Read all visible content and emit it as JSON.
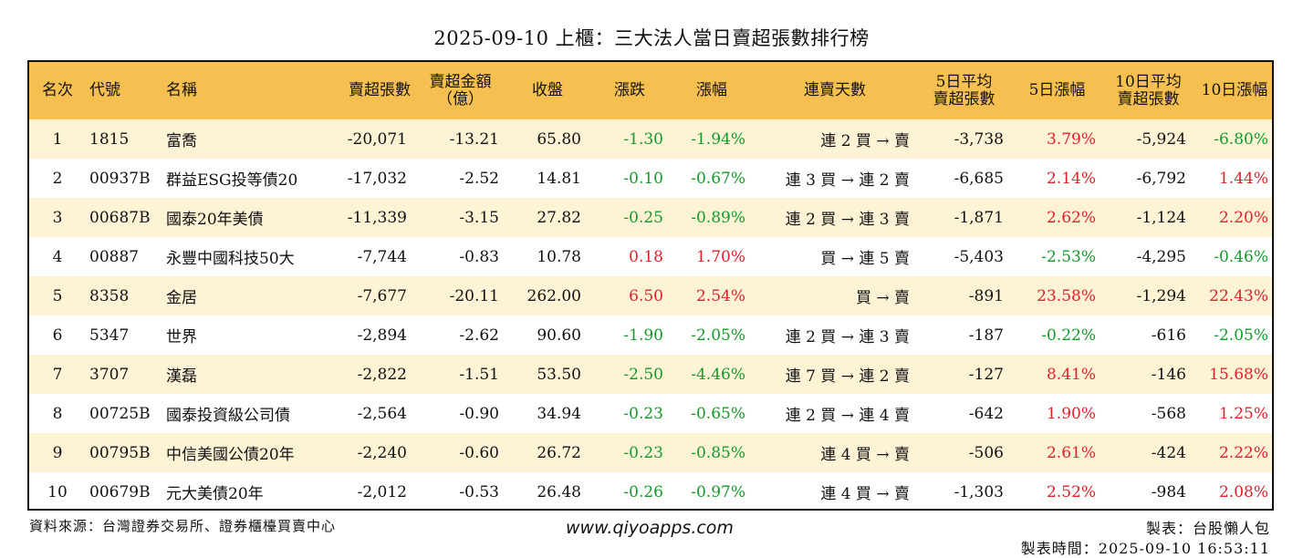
{
  "title": "2025-09-10 上櫃：三大法人當日賣超張數排行榜",
  "headers": {
    "rank": "名次",
    "code": "代號",
    "name": "名稱",
    "shares": "賣超張數",
    "amount_l1": "賣超金額",
    "amount_l2": "（億）",
    "close": "收盤",
    "change": "漲跌",
    "pct": "漲幅",
    "streak": "連賣天數",
    "avg5_l1": "5日平均",
    "avg5_l2": "賣超張數",
    "pct5": "5日漲幅",
    "avg10_l1": "10日平均",
    "avg10_l2": "賣超張數",
    "pct10": "10日漲幅"
  },
  "colors": {
    "header_bg": "#f6c050",
    "row_alt_bg": "#fff3d6",
    "up": "#e0202a",
    "down": "#139a2a"
  },
  "rows": [
    {
      "rank": "1",
      "code": "1815",
      "name": "富喬",
      "shares": "-20,071",
      "amount": "-13.21",
      "close": "65.80",
      "change": "-1.30",
      "pct": "-1.94%",
      "streak": "連 2 買 → 賣",
      "avg5": "-3,738",
      "pct5": "3.79%",
      "avg10": "-5,924",
      "pct10": "-6.80%"
    },
    {
      "rank": "2",
      "code": "00937B",
      "name": "群益ESG投等債20",
      "shares": "-17,032",
      "amount": "-2.52",
      "close": "14.81",
      "change": "-0.10",
      "pct": "-0.67%",
      "streak": "連 3 買 → 連 2 賣",
      "avg5": "-6,685",
      "pct5": "2.14%",
      "avg10": "-6,792",
      "pct10": "1.44%"
    },
    {
      "rank": "3",
      "code": "00687B",
      "name": "國泰20年美債",
      "shares": "-11,339",
      "amount": "-3.15",
      "close": "27.82",
      "change": "-0.25",
      "pct": "-0.89%",
      "streak": "連 2 買 → 連 3 賣",
      "avg5": "-1,871",
      "pct5": "2.62%",
      "avg10": "-1,124",
      "pct10": "2.20%"
    },
    {
      "rank": "4",
      "code": "00887",
      "name": "永豐中國科技50大",
      "shares": "-7,744",
      "amount": "-0.83",
      "close": "10.78",
      "change": "0.18",
      "pct": "1.70%",
      "streak": "買 → 連 5 賣",
      "avg5": "-5,403",
      "pct5": "-2.53%",
      "avg10": "-4,295",
      "pct10": "-0.46%"
    },
    {
      "rank": "5",
      "code": "8358",
      "name": "金居",
      "shares": "-7,677",
      "amount": "-20.11",
      "close": "262.00",
      "change": "6.50",
      "pct": "2.54%",
      "streak": "買 → 賣",
      "avg5": "-891",
      "pct5": "23.58%",
      "avg10": "-1,294",
      "pct10": "22.43%"
    },
    {
      "rank": "6",
      "code": "5347",
      "name": "世界",
      "shares": "-2,894",
      "amount": "-2.62",
      "close": "90.60",
      "change": "-1.90",
      "pct": "-2.05%",
      "streak": "連 2 買 → 連 3 賣",
      "avg5": "-187",
      "pct5": "-0.22%",
      "avg10": "-616",
      "pct10": "-2.05%"
    },
    {
      "rank": "7",
      "code": "3707",
      "name": "漢磊",
      "shares": "-2,822",
      "amount": "-1.51",
      "close": "53.50",
      "change": "-2.50",
      "pct": "-4.46%",
      "streak": "連 7 買 → 連 2 賣",
      "avg5": "-127",
      "pct5": "8.41%",
      "avg10": "-146",
      "pct10": "15.68%"
    },
    {
      "rank": "8",
      "code": "00725B",
      "name": "國泰投資級公司債",
      "shares": "-2,564",
      "amount": "-0.90",
      "close": "34.94",
      "change": "-0.23",
      "pct": "-0.65%",
      "streak": "連 2 買 → 連 4 賣",
      "avg5": "-642",
      "pct5": "1.90%",
      "avg10": "-568",
      "pct10": "1.25%"
    },
    {
      "rank": "9",
      "code": "00795B",
      "name": "中信美國公債20年",
      "shares": "-2,240",
      "amount": "-0.60",
      "close": "26.72",
      "change": "-0.23",
      "pct": "-0.85%",
      "streak": "連 4 買 → 賣",
      "avg5": "-506",
      "pct5": "2.61%",
      "avg10": "-424",
      "pct10": "2.22%"
    },
    {
      "rank": "10",
      "code": "00679B",
      "name": "元大美債20年",
      "shares": "-2,012",
      "amount": "-0.53",
      "close": "26.48",
      "change": "-0.26",
      "pct": "-0.97%",
      "streak": "連 4 買 → 賣",
      "avg5": "-1,303",
      "pct5": "2.52%",
      "avg10": "-984",
      "pct10": "2.08%"
    }
  ],
  "footer": {
    "source": "資料來源：台灣證券交易所、證券櫃檯買賣中心",
    "website": "www.qiyoapps.com",
    "maker": "製表：台股懶人包",
    "made_time": "製表時間：2025-09-10 16:53:11"
  }
}
